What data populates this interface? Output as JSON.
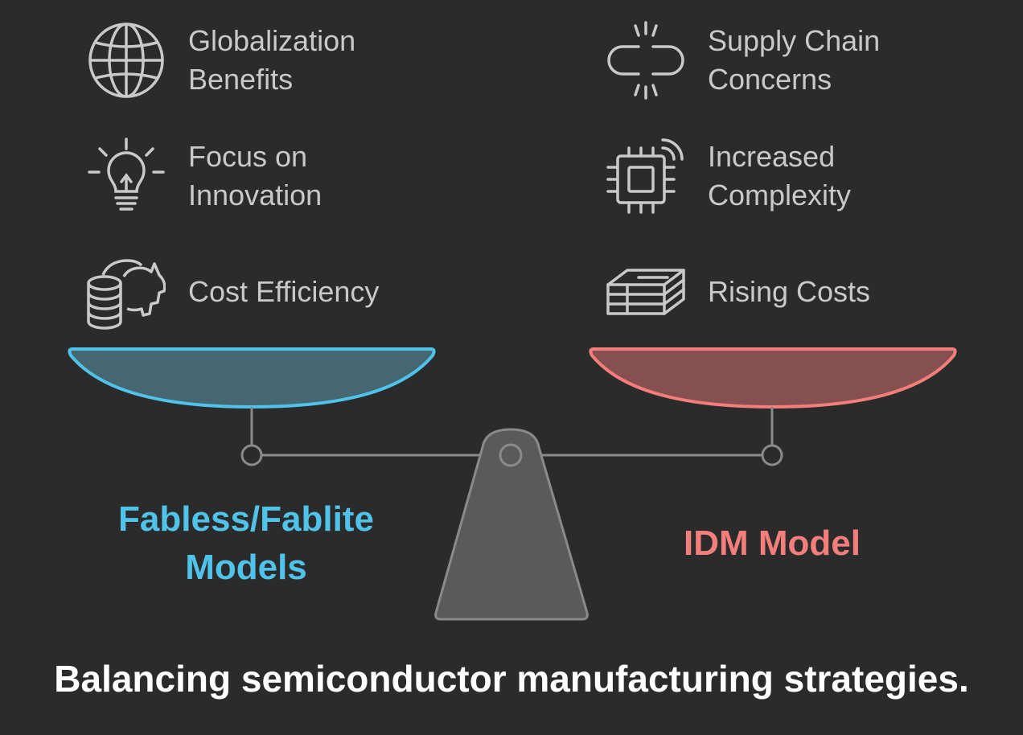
{
  "left": {
    "title": "Fabless/Fablite\nModels",
    "color": "#4fc3ea",
    "items": [
      {
        "label": "Globalization\nBenefits",
        "icon": "globe-icon"
      },
      {
        "label": "Focus on\nInnovation",
        "icon": "lightbulb-icon"
      },
      {
        "label": "Cost Efficiency",
        "icon": "piggy-bank-coins-icon"
      }
    ]
  },
  "right": {
    "title": "IDM Model",
    "color": "#f47e7b",
    "items": [
      {
        "label": "Supply Chain\nConcerns",
        "icon": "broken-link-icon"
      },
      {
        "label": "Increased\nComplexity",
        "icon": "chip-signal-icon"
      },
      {
        "label": "Rising Costs",
        "icon": "cash-stack-icon"
      }
    ]
  },
  "caption": "Balancing semiconductor manufacturing strategies."
}
